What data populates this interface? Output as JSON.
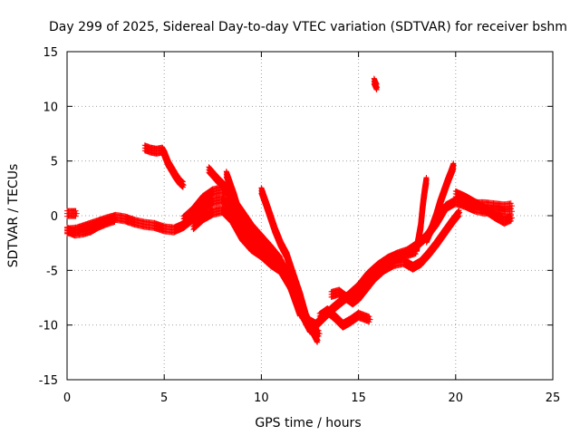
{
  "chart_data": {
    "type": "scatter",
    "title": "Day 299 of 2025, Sidereal Day-to-day VTEC variation (SDTVAR) for receiver bshm",
    "xlabel": "GPS time / hours",
    "ylabel": "SDTVAR / TECUs",
    "xlim": [
      0,
      25
    ],
    "ylim": [
      -15,
      15
    ],
    "xticks": [
      0,
      5,
      10,
      15,
      20,
      25
    ],
    "yticks": [
      -15,
      -10,
      -5,
      0,
      5,
      10,
      15
    ],
    "xtick_labels": [
      "0",
      "5",
      "10",
      "15",
      "20",
      "25"
    ],
    "ytick_labels": [
      "-15",
      "-10",
      "-5",
      "0",
      "5",
      "10",
      "15"
    ],
    "grid": true,
    "marker": "+",
    "color": "#ff0000",
    "series": [
      {
        "name": "track-main",
        "points": [
          [
            0,
            -1.4
          ],
          [
            0.5,
            -1.3
          ],
          [
            1,
            -1
          ],
          [
            1.5,
            -0.7
          ],
          [
            2,
            -0.4
          ],
          [
            2.5,
            -0.15
          ],
          [
            3,
            -0.3
          ],
          [
            3.5,
            -0.6
          ],
          [
            4,
            -0.8
          ],
          [
            4.5,
            -0.9
          ],
          [
            5,
            -1.2
          ],
          [
            5.5,
            -1.3
          ],
          [
            6,
            -0.9
          ],
          [
            6.5,
            -0.2
          ],
          [
            7,
            0.7
          ],
          [
            7.5,
            1.3
          ],
          [
            8,
            1.5
          ],
          [
            8.5,
            0.6
          ],
          [
            9,
            -0.6
          ],
          [
            9.5,
            -1.6
          ],
          [
            10,
            -2.4
          ],
          [
            10.5,
            -3.3
          ],
          [
            11,
            -4.2
          ],
          [
            11.5,
            -6
          ],
          [
            12,
            -8.2
          ],
          [
            12.4,
            -9.6
          ],
          [
            12.8,
            -10
          ],
          [
            13.2,
            -9.3
          ],
          [
            13.6,
            -8.6
          ],
          [
            14,
            -8
          ],
          [
            14.5,
            -7.3
          ],
          [
            15,
            -6.5
          ],
          [
            15.5,
            -5.4
          ],
          [
            16,
            -4.6
          ],
          [
            16.5,
            -4
          ],
          [
            17,
            -3.6
          ],
          [
            17.5,
            -3.3
          ],
          [
            18,
            -2.7
          ],
          [
            18.5,
            -1.9
          ],
          [
            19,
            -0.7
          ],
          [
            19.5,
            0.8
          ],
          [
            20,
            1.3
          ],
          [
            20.5,
            1
          ],
          [
            21,
            0.6
          ],
          [
            21.5,
            0.4
          ],
          [
            22,
            0.6
          ],
          [
            22.5,
            0.4
          ],
          [
            22.9,
            0.4
          ]
        ]
      },
      {
        "name": "track-upper",
        "points": [
          [
            6,
            -0.3
          ],
          [
            6.5,
            0.5
          ],
          [
            7,
            1.6
          ],
          [
            7.5,
            2.2
          ],
          [
            8,
            2.4
          ],
          [
            8.3,
            2.1
          ],
          [
            8.6,
            1.3
          ],
          [
            9,
            0.3
          ],
          [
            9.5,
            -1
          ],
          [
            10,
            -2
          ],
          [
            10.5,
            -3
          ],
          [
            11,
            -4.1
          ]
        ]
      },
      {
        "name": "track-lower",
        "points": [
          [
            6.5,
            -1
          ],
          [
            7,
            -0.2
          ],
          [
            7.5,
            0.3
          ],
          [
            8,
            0.5
          ],
          [
            8.5,
            -0.4
          ],
          [
            9,
            -2
          ],
          [
            9.5,
            -3
          ],
          [
            10,
            -3.6
          ],
          [
            10.5,
            -4.4
          ],
          [
            11,
            -5
          ],
          [
            11.5,
            -6.5
          ],
          [
            12,
            -8.7
          ],
          [
            12.5,
            -10.4
          ],
          [
            13,
            -10.8
          ]
        ]
      },
      {
        "name": "track-branch-9h",
        "points": [
          [
            8.2,
            3.8
          ],
          [
            8.6,
            1.8
          ],
          [
            9,
            -0.6
          ],
          [
            9.5,
            -2.2
          ],
          [
            10,
            -3.1
          ],
          [
            10.4,
            -3.6
          ],
          [
            10.9,
            -4.2
          ],
          [
            11.3,
            -5.5
          ],
          [
            11.7,
            -7.5
          ],
          [
            12,
            -9
          ]
        ]
      },
      {
        "name": "track-branch-7h",
        "points": [
          [
            7.3,
            4.2
          ],
          [
            7.8,
            3.2
          ],
          [
            8.2,
            2.5
          ],
          [
            8.5,
            1.1
          ],
          [
            8.9,
            -0.8
          ],
          [
            9.3,
            -2
          ],
          [
            9.8,
            -3
          ]
        ]
      },
      {
        "name": "track-branch-10h",
        "points": [
          [
            10,
            2.3
          ],
          [
            10.3,
            0.8
          ],
          [
            10.7,
            -1.3
          ],
          [
            11,
            -2.6
          ],
          [
            11.3,
            -3.6
          ],
          [
            11.6,
            -5.2
          ],
          [
            12,
            -7.3
          ],
          [
            12.3,
            -9.2
          ],
          [
            12.6,
            -10.4
          ],
          [
            12.9,
            -11.4
          ]
        ]
      },
      {
        "name": "track-13h",
        "points": [
          [
            13,
            -9.2
          ],
          [
            13.4,
            -8.7
          ],
          [
            13.8,
            -9.3
          ],
          [
            14.2,
            -10
          ],
          [
            14.6,
            -9.6
          ],
          [
            15,
            -9.1
          ],
          [
            15.3,
            -9.3
          ],
          [
            15.6,
            -9.5
          ]
        ]
      },
      {
        "name": "track-14h",
        "points": [
          [
            13.6,
            -7.2
          ],
          [
            14,
            -7
          ],
          [
            14.3,
            -7.4
          ],
          [
            14.7,
            -7.9
          ],
          [
            15,
            -7.5
          ],
          [
            15.4,
            -6.6
          ],
          [
            15.8,
            -5.7
          ],
          [
            16.3,
            -4.9
          ],
          [
            16.8,
            -4.4
          ],
          [
            17.3,
            -4.2
          ],
          [
            17.8,
            -4.7
          ],
          [
            18.2,
            -4.3
          ],
          [
            18.6,
            -3.5
          ],
          [
            19,
            -2.6
          ],
          [
            19.4,
            -1.6
          ],
          [
            19.8,
            -0.6
          ],
          [
            20.2,
            0.3
          ]
        ]
      },
      {
        "name": "track-16h",
        "points": [
          [
            15,
            -7
          ],
          [
            15.5,
            -5.6
          ],
          [
            16,
            -4.9
          ],
          [
            16.5,
            -4.2
          ],
          [
            17,
            -3.8
          ],
          [
            17.5,
            -3.5
          ],
          [
            18,
            -3.2
          ]
        ]
      },
      {
        "name": "track-18h-spike",
        "points": [
          [
            18,
            -3
          ],
          [
            18.2,
            -1
          ],
          [
            18.3,
            0.8
          ],
          [
            18.4,
            2.2
          ],
          [
            18.5,
            3.3
          ]
        ]
      },
      {
        "name": "track-19h",
        "points": [
          [
            18.5,
            -2.2
          ],
          [
            18.8,
            -1
          ],
          [
            19,
            0
          ],
          [
            19.2,
            1.2
          ],
          [
            19.4,
            2.2
          ],
          [
            19.6,
            3.2
          ],
          [
            19.8,
            4.1
          ],
          [
            19.9,
            4.6
          ]
        ]
      },
      {
        "name": "track-21h",
        "points": [
          [
            20,
            2
          ],
          [
            20.5,
            1.6
          ],
          [
            21,
            1.1
          ],
          [
            21.5,
            0.6
          ],
          [
            22,
            0
          ],
          [
            22.5,
            -0.5
          ],
          [
            22.9,
            -0.2
          ]
        ]
      },
      {
        "name": "track-22h",
        "points": [
          [
            20.5,
            1.2
          ],
          [
            21,
            1
          ],
          [
            21.5,
            1
          ],
          [
            22,
            0.9
          ],
          [
            22.5,
            0.8
          ],
          [
            22.9,
            0.9
          ]
        ]
      },
      {
        "name": "track-early",
        "points": [
          [
            0,
            -1.3
          ],
          [
            0.4,
            -1.6
          ],
          [
            0.8,
            -1.5
          ],
          [
            1.2,
            -1.3
          ],
          [
            1.6,
            -0.9
          ],
          [
            2,
            -0.6
          ],
          [
            2.5,
            -0.3
          ]
        ]
      },
      {
        "name": "track-start",
        "points": [
          [
            0,
            0.2
          ],
          [
            0.2,
            0.2
          ],
          [
            0.4,
            0.2
          ],
          [
            0.5,
            0.2
          ]
        ]
      },
      {
        "name": "track-4h",
        "points": [
          [
            4,
            6.2
          ],
          [
            4.3,
            6
          ],
          [
            4.6,
            5.9
          ],
          [
            4.9,
            6
          ],
          [
            5,
            5.7
          ],
          [
            5.2,
            4.8
          ],
          [
            5.4,
            4.2
          ],
          [
            5.6,
            3.6
          ],
          [
            5.8,
            3.1
          ],
          [
            6,
            2.8
          ]
        ]
      },
      {
        "name": "track-16h-outlier",
        "points": [
          [
            15.8,
            12.3
          ],
          [
            15.85,
            12.1
          ],
          [
            15.9,
            11.9
          ],
          [
            15.95,
            11.7
          ]
        ]
      }
    ]
  }
}
